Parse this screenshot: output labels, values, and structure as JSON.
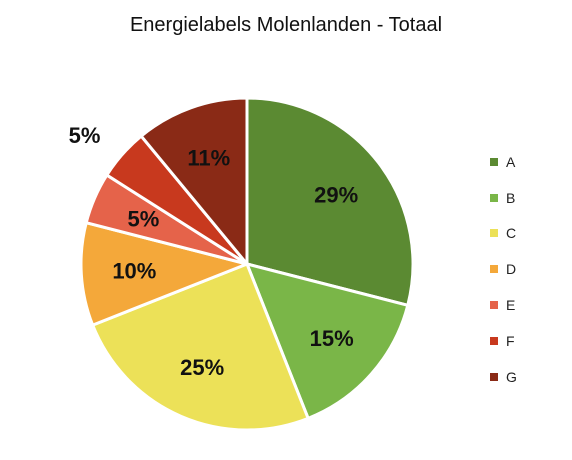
{
  "chart_data": {
    "type": "pie",
    "title": "Energielabels Molenlanden - Totaal",
    "categories": [
      "A",
      "B",
      "C",
      "D",
      "E",
      "F",
      "G"
    ],
    "values": [
      29,
      15,
      25,
      10,
      5,
      5,
      11
    ],
    "data_labels": [
      "29%",
      "15%",
      "25%",
      "10%",
      "5%",
      "5%",
      "11%"
    ],
    "colors": [
      "#5b8a32",
      "#7ab648",
      "#ece158",
      "#f4a83a",
      "#e5634a",
      "#c8391e",
      "#8a2a16"
    ],
    "legend_position": "right"
  }
}
